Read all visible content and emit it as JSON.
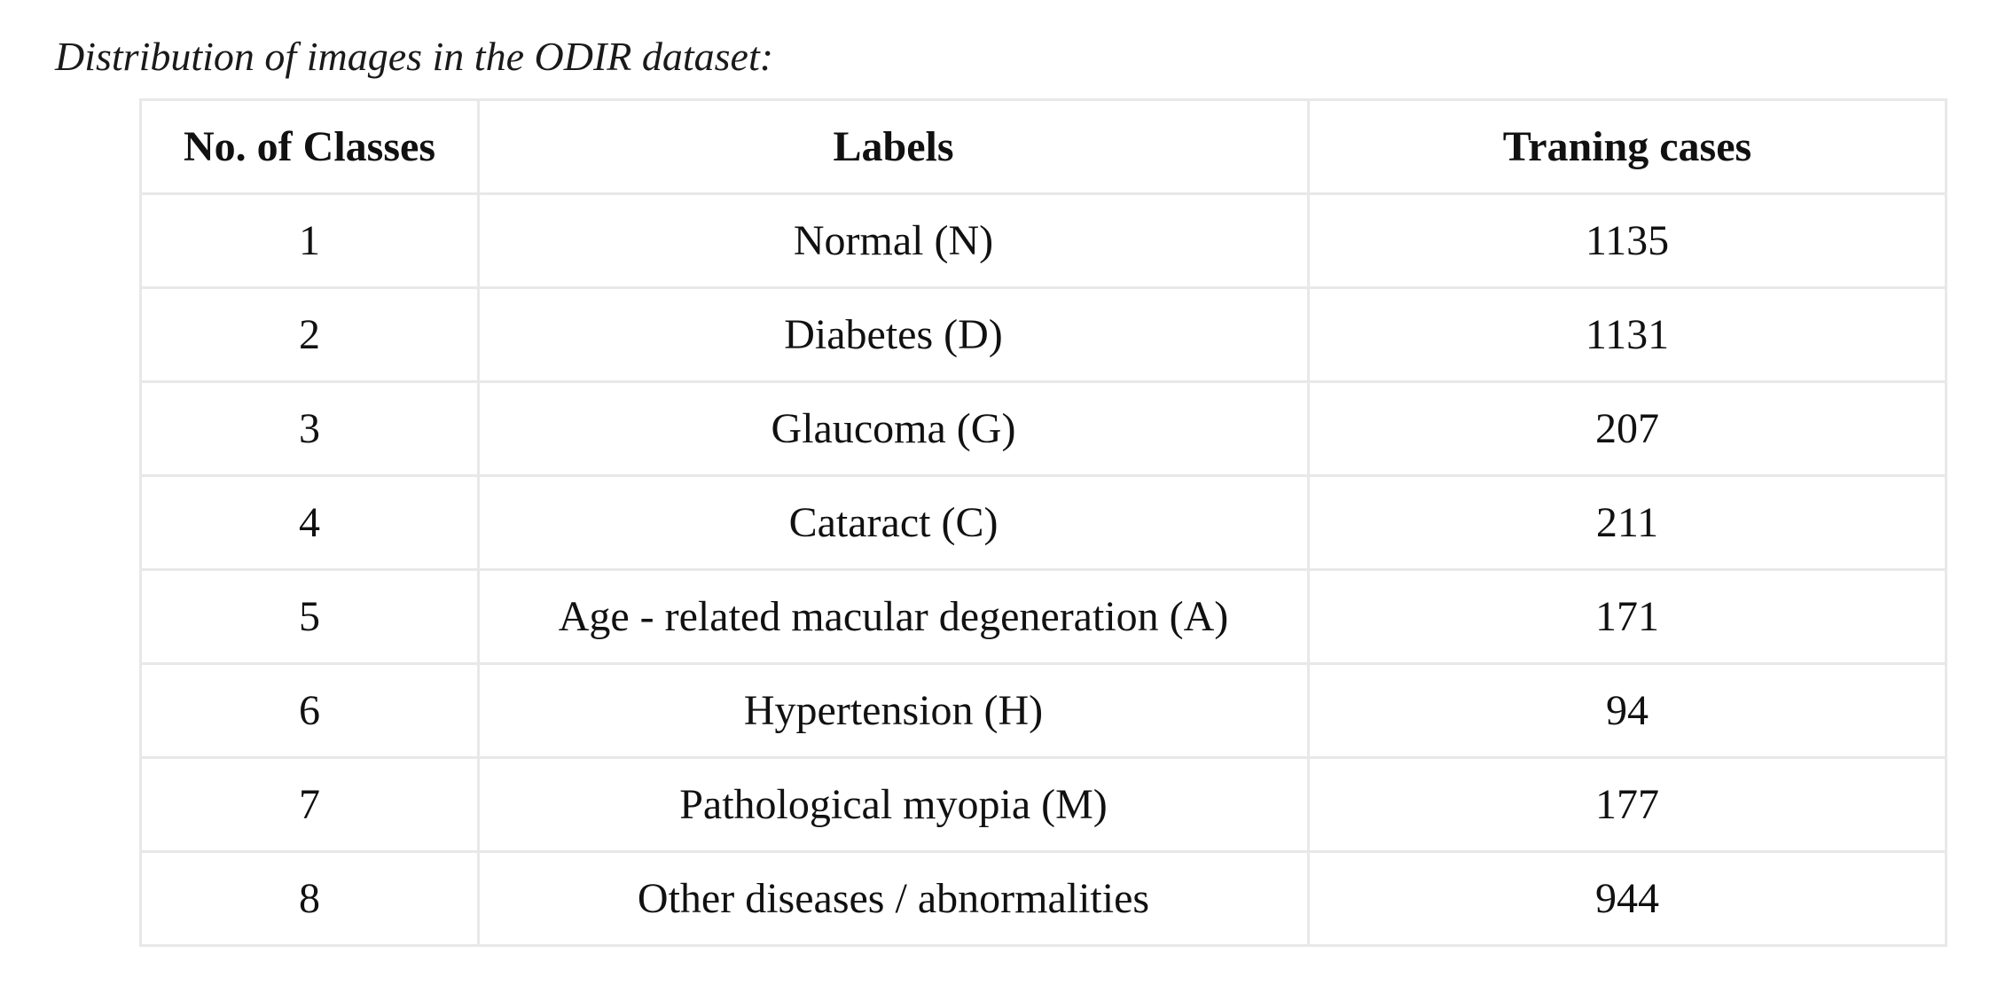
{
  "caption": "Distribution of images in the ODIR dataset:",
  "table": {
    "headers": [
      "No. of Classes",
      "Labels",
      "Traning cases"
    ],
    "rows": [
      [
        "1",
        "Normal (N)",
        "1135"
      ],
      [
        "2",
        "Diabetes (D)",
        "1131"
      ],
      [
        "3",
        "Glaucoma (G)",
        "207"
      ],
      [
        "4",
        "Cataract (C)",
        "211"
      ],
      [
        "5",
        "Age - related macular degeneration (A)",
        "171"
      ],
      [
        "6",
        "Hypertension (H)",
        "94"
      ],
      [
        "7",
        "Pathological myopia (M)",
        "177"
      ],
      [
        "8",
        "Other diseases / abnormalities",
        "944"
      ]
    ]
  }
}
